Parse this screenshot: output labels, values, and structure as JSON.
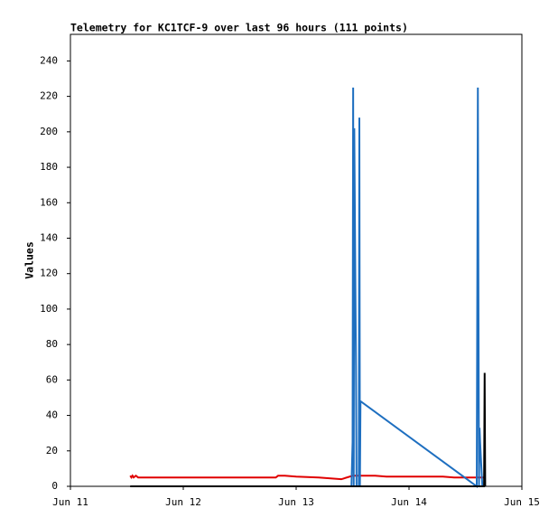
{
  "chart_data": {
    "type": "line",
    "title": "Telemetry for KC1TCF-9 over last 96 hours (111 points)",
    "y_label": "Values",
    "xlim": [
      11,
      15
    ],
    "xticks": [
      {
        "value": 11,
        "label": "Jun 11"
      },
      {
        "value": 12,
        "label": "Jun 12"
      },
      {
        "value": 13,
        "label": "Jun 13"
      },
      {
        "value": 14,
        "label": "Jun 14"
      },
      {
        "value": 15,
        "label": "Jun 15"
      }
    ],
    "ylim": [
      0,
      255
    ],
    "yticks": [
      0,
      20,
      40,
      60,
      80,
      100,
      120,
      140,
      160,
      180,
      200,
      220,
      240
    ],
    "series": [
      {
        "color": "#e00000",
        "x": [
          11.53,
          11.54,
          11.55,
          11.56,
          11.58,
          11.6,
          12.82,
          12.84,
          12.9,
          13.0,
          13.2,
          13.4,
          13.5,
          13.7,
          13.8,
          14.3,
          14.4,
          14.5,
          14.67
        ],
        "values": [
          6,
          5,
          6,
          5,
          6,
          5,
          5,
          6,
          6,
          5.5,
          5,
          4,
          6,
          6,
          5.5,
          5.5,
          5,
          5,
          5
        ]
      },
      {
        "color": "#1e6fc0",
        "x": [
          13.49,
          13.5,
          13.505,
          13.51,
          13.515,
          13.52,
          13.525,
          13.53,
          13.535,
          13.555,
          13.56,
          13.565,
          13.57,
          14.6,
          14.61,
          14.62,
          14.625,
          14.63,
          14.64,
          14.65
        ],
        "values": [
          0,
          25,
          225,
          0,
          202,
          157,
          112,
          68,
          0,
          0,
          208,
          0,
          48,
          0,
          225,
          0,
          33,
          25,
          12,
          0
        ]
      },
      {
        "color": "#000000",
        "x": [
          11.53,
          14.665,
          14.67,
          14.675
        ],
        "values": [
          0,
          0,
          64,
          0
        ]
      }
    ]
  }
}
